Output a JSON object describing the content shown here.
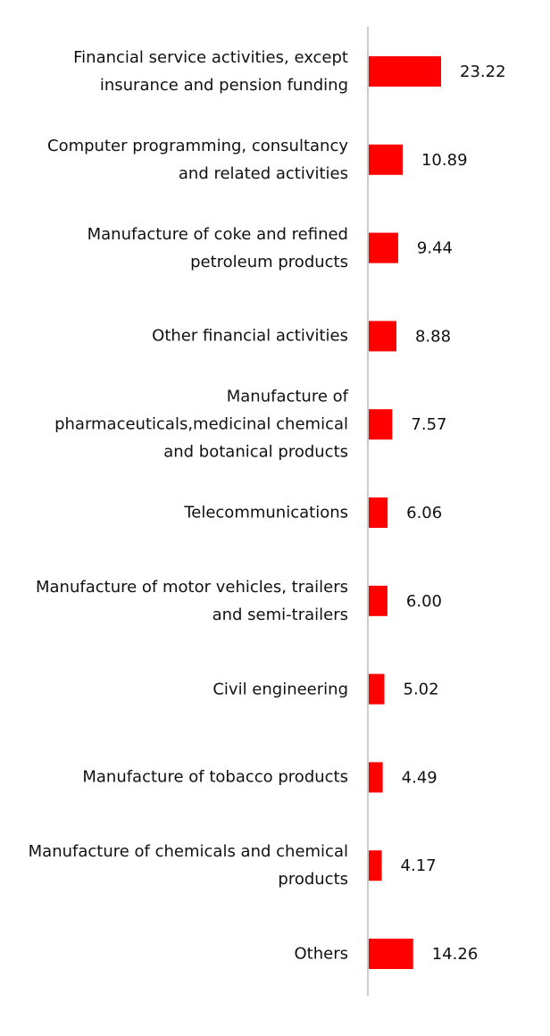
{
  "chart_data": {
    "type": "bar",
    "orientation": "horizontal",
    "color": "#ff0000",
    "categories": [
      "Financial service activities, except insurance and pension funding",
      "Computer programming, consultancy and related activities",
      "Manufacture of coke and refined petroleum products",
      "Other financial activities",
      "Manufacture of pharmaceuticals,medicinal chemical and botanical products",
      "Telecommunications",
      "Manufacture of motor vehicles, trailers and semi-trailers",
      "Civil engineering",
      "Manufacture of tobacco products",
      "Manufacture of chemicals and chemical products",
      "Others"
    ],
    "values": [
      23.22,
      10.89,
      9.44,
      8.88,
      7.57,
      6.06,
      6.0,
      5.02,
      4.49,
      4.17,
      14.26
    ],
    "value_labels": [
      "23.22",
      "10.89",
      "9.44",
      "8.88",
      "7.57",
      "6.06",
      "6.00",
      "5.02",
      "4.49",
      "4.17",
      "14.26"
    ]
  }
}
